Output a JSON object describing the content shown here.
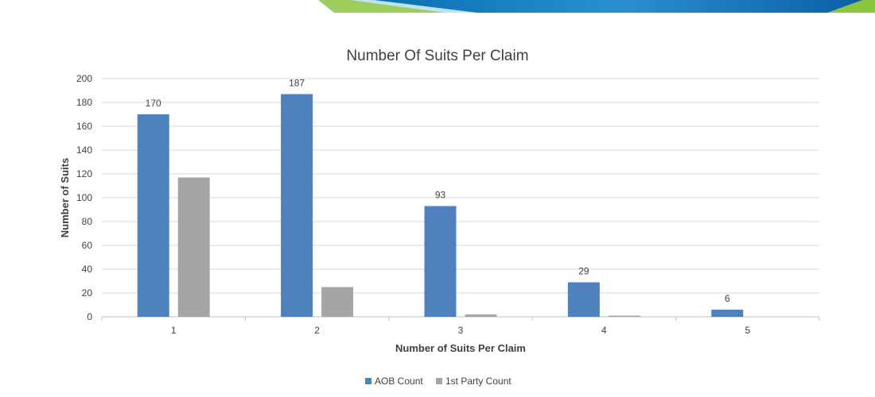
{
  "chart_data": {
    "type": "bar",
    "title": "Number Of Suits Per Claim",
    "xlabel": "Number of Suits Per Claim",
    "ylabel": "Number of Suits",
    "categories": [
      "1",
      "2",
      "3",
      "4",
      "5"
    ],
    "ylim": [
      0,
      200
    ],
    "yticks": [
      0,
      20,
      40,
      60,
      80,
      100,
      120,
      140,
      160,
      180,
      200
    ],
    "grid": true,
    "legend_position": "bottom",
    "series": [
      {
        "name": "AOB Count",
        "color": "#4f81bd",
        "values": [
          170,
          187,
          93,
          29,
          6
        ],
        "data_labels": [
          "170",
          "187",
          "93",
          "29",
          "6"
        ]
      },
      {
        "name": "1st Party Count",
        "color": "#a5a5a5",
        "values": [
          117,
          25,
          2,
          1,
          0
        ]
      }
    ]
  }
}
